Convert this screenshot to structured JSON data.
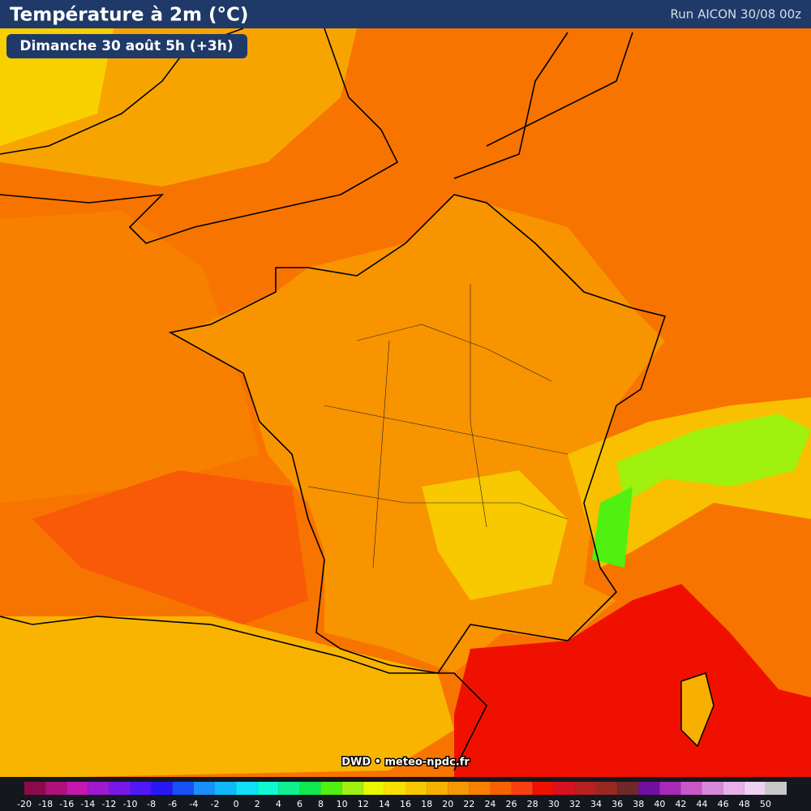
{
  "header": {
    "title": "Température à 2m (°C)",
    "run": "Run AICON 30/08 00z"
  },
  "subtitle": "Dimanche 30 août 5h (+3h)",
  "credit": "DWD • meteo-npdc.fr",
  "legend": {
    "values": [
      -20,
      -18,
      -16,
      -14,
      -12,
      -10,
      -8,
      -6,
      -4,
      -2,
      0,
      2,
      4,
      6,
      8,
      10,
      12,
      14,
      16,
      18,
      20,
      22,
      24,
      26,
      28,
      30,
      32,
      34,
      36,
      38,
      40,
      42,
      44,
      46,
      48,
      50
    ],
    "colors": [
      "#8c0a4a",
      "#b0107a",
      "#c418b0",
      "#a018d0",
      "#7818e8",
      "#5018f8",
      "#2818f8",
      "#1850f8",
      "#1890f8",
      "#10b8f8",
      "#10e0f8",
      "#10f8d0",
      "#10f090",
      "#10e850",
      "#50f010",
      "#a0f010",
      "#e8f800",
      "#f8e000",
      "#f8c800",
      "#f8b000",
      "#f89800",
      "#f88000",
      "#f86000",
      "#f84010",
      "#f01000",
      "#d81020",
      "#b82020",
      "#982820",
      "#702828",
      "#7010a0",
      "#a828b8",
      "#c858c8",
      "#d888d8",
      "#e8b0e8",
      "#f0d0f0",
      "#c8c8c8"
    ]
  }
}
